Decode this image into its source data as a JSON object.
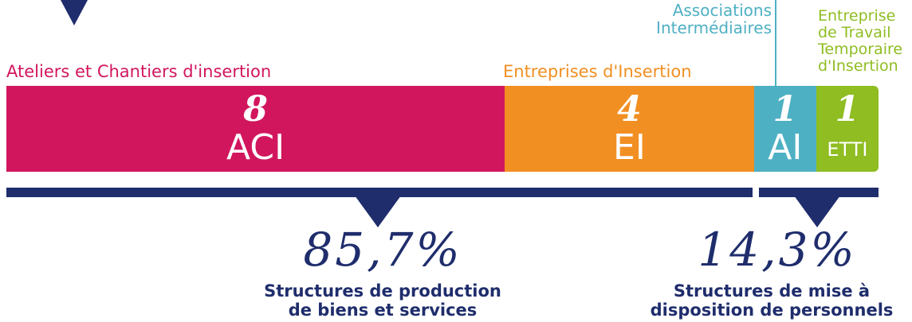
{
  "colors": {
    "aci": "#d2165e",
    "ei": "#f28f22",
    "ai": "#4eb0c3",
    "etti": "#8fbd22",
    "navy": "#1f2d6c"
  },
  "chart_data": {
    "type": "bar",
    "stacked": true,
    "orientation": "horizontal",
    "categories": [
      "ACI",
      "EI",
      "AI",
      "ETTI"
    ],
    "values": [
      8,
      4,
      1,
      1
    ],
    "value_labels": [
      "8",
      "4",
      "1",
      "1"
    ],
    "segment_labels": [
      "Ateliers et Chantiers d'insertion",
      "Entreprises d'Insertion",
      "Associations\nIntermédiaires",
      "Entreprise\nde Travail\nTemporaire\nd'Insertion"
    ],
    "groups": [
      {
        "percent": "85,7%",
        "caption_line1": "Structures de production",
        "caption_line2": "de biens et services",
        "members": [
          "ACI",
          "EI"
        ]
      },
      {
        "percent": "14,3%",
        "caption_line1": "Structures de mise à",
        "caption_line2": "disposition de personnels",
        "members": [
          "AI",
          "ETTI"
        ]
      }
    ]
  }
}
